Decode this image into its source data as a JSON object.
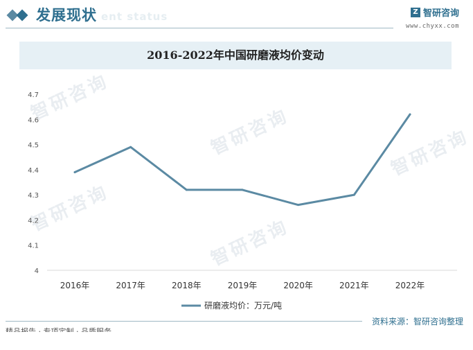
{
  "header": {
    "section_title": "发展现状",
    "section_ghost": "ent status",
    "brand_name": "智研咨询",
    "brand_url": "www.chyxx.com"
  },
  "chart_data": {
    "type": "line",
    "title": "2016-2022年中国研磨液均价变动",
    "categories": [
      "2016年",
      "2017年",
      "2018年",
      "2019年",
      "2020年",
      "2021年",
      "2022年"
    ],
    "series": [
      {
        "name": "研磨液均价：万元/吨",
        "values": [
          4.39,
          4.49,
          4.32,
          4.32,
          4.26,
          4.3,
          4.62
        ],
        "color": "#5b8aa3"
      }
    ],
    "yticks": [
      "4",
      "4.1",
      "4.2",
      "4.3",
      "4.4",
      "4.5",
      "4.6",
      "4.7"
    ],
    "ylim": [
      4,
      4.7
    ],
    "grid": false,
    "legend": "bottom"
  },
  "footer": {
    "source": "资料来源：智研咨询整理",
    "left_text": "精品报告 · 专项定制 · 品质服务"
  },
  "watermark": "智研咨询"
}
